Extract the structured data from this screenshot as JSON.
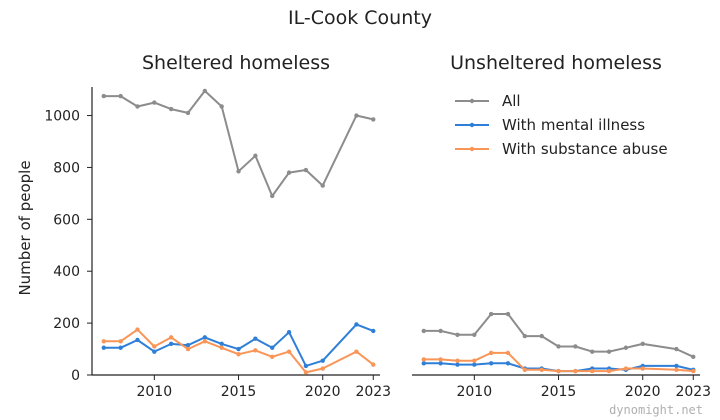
{
  "figure": {
    "title": "IL-Cook County",
    "watermark": "dynomight.net"
  },
  "colors": {
    "All": "#8c8c8c",
    "With mental illness": "#2f7fd8",
    "With substance abuse": "#f99557"
  },
  "legend": {
    "placement": "top-right of second panel",
    "entries": [
      "All",
      "With mental illness",
      "With substance abuse"
    ]
  },
  "chart_data": [
    {
      "type": "line",
      "title": "Sheltered homeless",
      "ylabel": "Number of people",
      "xlabel": "",
      "xlim": [
        2006.3,
        2023.4
      ],
      "ylim": [
        0,
        1110
      ],
      "xticks": [
        2010,
        2015,
        2020,
        2023
      ],
      "yticks": [
        0,
        200,
        400,
        600,
        800,
        1000
      ],
      "grid": false,
      "x": [
        2007,
        2008,
        2009,
        2010,
        2011,
        2012,
        2013,
        2014,
        2015,
        2016,
        2017,
        2018,
        2019,
        2020,
        2022,
        2023
      ],
      "series": [
        {
          "name": "All",
          "values": [
            1075,
            1075,
            1035,
            1050,
            1025,
            1010,
            1095,
            1035,
            785,
            845,
            690,
            780,
            790,
            730,
            1000,
            985
          ]
        },
        {
          "name": "With mental illness",
          "values": [
            105,
            105,
            135,
            90,
            120,
            115,
            145,
            120,
            100,
            140,
            105,
            165,
            35,
            55,
            195,
            170
          ]
        },
        {
          "name": "With substance abuse",
          "values": [
            130,
            130,
            175,
            110,
            145,
            100,
            130,
            105,
            80,
            95,
            70,
            90,
            10,
            25,
            90,
            40
          ]
        }
      ]
    },
    {
      "type": "line",
      "title": "Unsheltered homeless",
      "ylabel": "",
      "xlabel": "",
      "xlim": [
        2006.3,
        2023.4
      ],
      "ylim": [
        0,
        1110
      ],
      "xticks": [
        2010,
        2015,
        2020,
        2023
      ],
      "grid": false,
      "x": [
        2007,
        2008,
        2009,
        2010,
        2011,
        2012,
        2013,
        2014,
        2015,
        2016,
        2017,
        2018,
        2019,
        2020,
        2022,
        2023
      ],
      "series": [
        {
          "name": "All",
          "values": [
            170,
            170,
            155,
            155,
            235,
            235,
            150,
            150,
            110,
            110,
            90,
            90,
            105,
            120,
            100,
            70
          ]
        },
        {
          "name": "With mental illness",
          "values": [
            45,
            45,
            40,
            40,
            45,
            45,
            25,
            25,
            15,
            15,
            25,
            25,
            20,
            35,
            35,
            20
          ]
        },
        {
          "name": "With substance abuse",
          "values": [
            60,
            60,
            55,
            55,
            85,
            85,
            20,
            20,
            15,
            15,
            15,
            15,
            25,
            25,
            20,
            15
          ]
        }
      ]
    }
  ]
}
